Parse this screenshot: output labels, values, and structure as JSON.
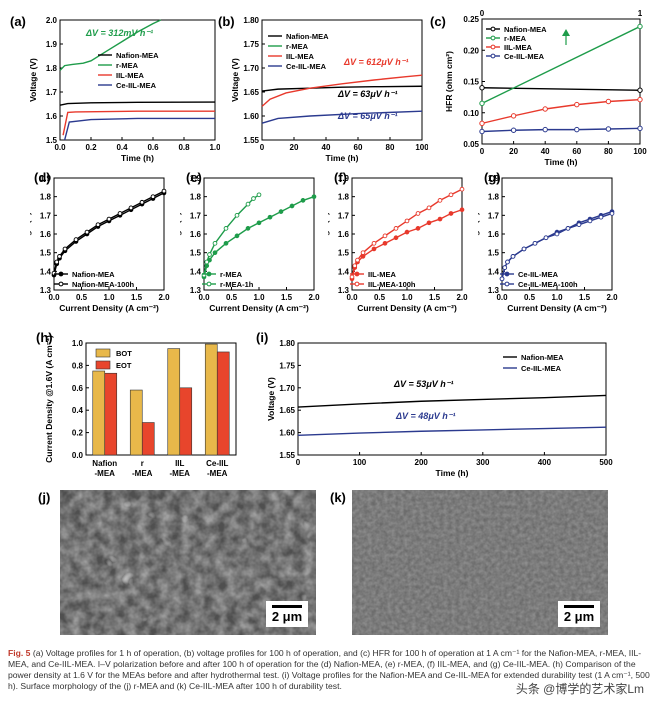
{
  "panels": {
    "a": {
      "label": "(a)",
      "chart_data": {
        "type": "line",
        "xlabel": "Time (h)",
        "ylabel": "Voltage (V)",
        "xlim": [
          0,
          1.0
        ],
        "ylim": [
          1.5,
          2.0
        ],
        "xticks": [
          "0.0",
          "0.2",
          "0.4",
          "0.6",
          "0.8",
          "1.0"
        ],
        "yticks": [
          "1.5",
          "1.6",
          "1.7",
          "1.8",
          "1.9",
          "2.0"
        ],
        "series": [
          {
            "name": "Nafion-MEA",
            "color": "#000000",
            "x": [
              0,
              0.05,
              0.2,
              0.5,
              1.0
            ],
            "y": [
              1.645,
              1.652,
              1.655,
              1.657,
              1.658
            ]
          },
          {
            "name": "r-MEA",
            "color": "#1e9c4a",
            "x": [
              0,
              0.03,
              0.08,
              0.15,
              0.2,
              0.3,
              0.4,
              0.5,
              0.6,
              0.65
            ],
            "y": [
              1.79,
              1.81,
              1.815,
              1.82,
              1.83,
              1.87,
              1.91,
              1.95,
              1.985,
              2.0
            ]
          },
          {
            "name": "IIL-MEA",
            "color": "#e8392c",
            "x": [
              0.02,
              0.05,
              0.1,
              0.5,
              1.0
            ],
            "y": [
              1.52,
              1.615,
              1.617,
              1.62,
              1.62
            ]
          },
          {
            "name": "Ce-IIL-MEA",
            "color": "#2b3a8f",
            "x": [
              0.03,
              0.06,
              0.2,
              0.5,
              1.0
            ],
            "y": [
              1.5,
              1.575,
              1.585,
              1.59,
              1.59
            ]
          }
        ],
        "annotation": "ΔV = 312mV h⁻¹"
      }
    },
    "b": {
      "label": "(b)",
      "chart_data": {
        "type": "line",
        "xlabel": "Time (h)",
        "ylabel": "Voltage (V)",
        "xlim": [
          0,
          100
        ],
        "ylim": [
          1.55,
          1.8
        ],
        "xticks": [
          "0",
          "20",
          "40",
          "60",
          "80",
          "100"
        ],
        "yticks": [
          "1.55",
          "1.60",
          "1.65",
          "1.70",
          "1.75",
          "1.80"
        ],
        "series": [
          {
            "name": "Nafion-MEA",
            "color": "#000000",
            "x": [
              0,
              10,
              30,
              50,
              70,
              100
            ],
            "y": [
              1.652,
              1.656,
              1.658,
              1.66,
              1.661,
              1.662
            ]
          },
          {
            "name": "r-MEA",
            "color": "#1e9c4a",
            "x": [],
            "y": []
          },
          {
            "name": "IIL-MEA",
            "color": "#e8392c",
            "x": [
              0,
              5,
              15,
              30,
              50,
              70,
              90,
              100
            ],
            "y": [
              1.62,
              1.635,
              1.648,
              1.658,
              1.667,
              1.675,
              1.682,
              1.685
            ]
          },
          {
            "name": "Ce-IIL-MEA",
            "color": "#2b3a8f",
            "x": [
              0,
              10,
              30,
              60,
              100
            ],
            "y": [
              1.585,
              1.595,
              1.6,
              1.605,
              1.61
            ]
          }
        ],
        "annotations": [
          "ΔV = 612μV h⁻¹",
          "ΔV = 63μV h⁻¹",
          "ΔV = 65μV h⁻¹"
        ]
      }
    },
    "c": {
      "label": "(c)",
      "chart_data": {
        "type": "line",
        "xlabel": "Time (h)",
        "ylabel": "HFR (ohm cm²)",
        "xlim": [
          0,
          100
        ],
        "ylim": [
          0.05,
          0.25
        ],
        "top_xlim": [
          0,
          1
        ],
        "xticks": [
          "0",
          "20",
          "40",
          "60",
          "80",
          "100"
        ],
        "top_xticks": [
          "0",
          "1"
        ],
        "yticks": [
          "0.05",
          "0.10",
          "0.15",
          "0.20",
          "0.25"
        ],
        "series": [
          {
            "name": "Nafion-MEA",
            "color": "#000000",
            "x": [
              0,
              100
            ],
            "y": [
              0.14,
              0.136
            ]
          },
          {
            "name": "r-MEA",
            "color": "#1e9c4a",
            "x": [
              0,
              100
            ],
            "y": [
              0.115,
              0.238
            ]
          },
          {
            "name": "IIL-MEA",
            "color": "#e8392c",
            "x": [
              0,
              20,
              40,
              60,
              80,
              100
            ],
            "y": [
              0.083,
              0.095,
              0.106,
              0.113,
              0.118,
              0.121
            ]
          },
          {
            "name": "Ce-IIL-MEA",
            "color": "#2b3a8f",
            "x": [
              0,
              20,
              40,
              60,
              80,
              100
            ],
            "y": [
              0.07,
              0.072,
              0.073,
              0.073,
              0.074,
              0.075
            ]
          }
        ]
      }
    },
    "d": {
      "label": "(d)",
      "chart_data": {
        "type": "line",
        "xlabel": "Current Density (A cm⁻²)",
        "ylabel": "Voltage (V)",
        "xlim": [
          0,
          2.0
        ],
        "ylim": [
          1.3,
          1.9
        ],
        "xticks": [
          "0.0",
          "0.5",
          "1.0",
          "1.5",
          "2.0"
        ],
        "yticks": [
          "1.3",
          "1.4",
          "1.5",
          "1.6",
          "1.7",
          "1.8",
          "1.9"
        ],
        "series": [
          {
            "name": "Nafion-MEA",
            "color": "#000000",
            "marker": "filled",
            "x": [
              0,
              0.05,
              0.1,
              0.2,
              0.4,
              0.6,
              0.8,
              1.0,
              1.2,
              1.4,
              1.6,
              1.8,
              2.0
            ],
            "y": [
              1.38,
              1.44,
              1.47,
              1.51,
              1.56,
              1.6,
              1.64,
              1.67,
              1.7,
              1.73,
              1.76,
              1.79,
              1.82
            ]
          },
          {
            "name": "Nafion-MEA-100h",
            "color": "#000000",
            "marker": "open",
            "x": [
              0,
              0.05,
              0.1,
              0.2,
              0.4,
              0.6,
              0.8,
              1.0,
              1.2,
              1.4,
              1.6,
              1.8,
              2.0
            ],
            "y": [
              1.39,
              1.45,
              1.48,
              1.52,
              1.57,
              1.61,
              1.65,
              1.68,
              1.71,
              1.74,
              1.77,
              1.8,
              1.83
            ]
          }
        ]
      }
    },
    "e": {
      "label": "(e)",
      "chart_data": {
        "type": "line",
        "xlabel": "Current Density (A cm⁻²)",
        "ylabel": "Voltage (V)",
        "xlim": [
          0,
          2.0
        ],
        "ylim": [
          1.3,
          1.9
        ],
        "xticks": [
          "0.0",
          "0.5",
          "1.0",
          "1.5",
          "2.0"
        ],
        "yticks": [
          "1.3",
          "1.4",
          "1.5",
          "1.6",
          "1.7",
          "1.8",
          "1.9"
        ],
        "series": [
          {
            "name": "r-MEA",
            "color": "#1e9c4a",
            "marker": "filled",
            "x": [
              0,
              0.05,
              0.1,
              0.2,
              0.4,
              0.6,
              0.8,
              1.0,
              1.2,
              1.4,
              1.6,
              1.8,
              2.0
            ],
            "y": [
              1.37,
              1.43,
              1.46,
              1.5,
              1.55,
              1.59,
              1.63,
              1.66,
              1.69,
              1.72,
              1.75,
              1.78,
              1.8
            ]
          },
          {
            "name": "r-MEA-1h",
            "color": "#1e9c4a",
            "marker": "open",
            "x": [
              0,
              0.05,
              0.1,
              0.2,
              0.4,
              0.6,
              0.8,
              0.9,
              1.0
            ],
            "y": [
              1.38,
              1.45,
              1.49,
              1.55,
              1.63,
              1.7,
              1.76,
              1.79,
              1.81
            ]
          }
        ]
      }
    },
    "f": {
      "label": "(f)",
      "chart_data": {
        "type": "line",
        "xlabel": "Current Density (A cm⁻²)",
        "ylabel": "Voltage (V)",
        "xlim": [
          0,
          2.0
        ],
        "ylim": [
          1.3,
          1.9
        ],
        "xticks": [
          "0.0",
          "0.5",
          "1.0",
          "1.5",
          "2.0"
        ],
        "yticks": [
          "1.3",
          "1.4",
          "1.5",
          "1.6",
          "1.7",
          "1.8",
          "1.9"
        ],
        "series": [
          {
            "name": "IIL-MEA",
            "color": "#e8392c",
            "marker": "filled",
            "x": [
              0,
              0.05,
              0.1,
              0.2,
              0.4,
              0.6,
              0.8,
              1.0,
              1.2,
              1.4,
              1.6,
              1.8,
              2.0
            ],
            "y": [
              1.36,
              1.42,
              1.45,
              1.48,
              1.52,
              1.55,
              1.58,
              1.61,
              1.63,
              1.66,
              1.68,
              1.71,
              1.73
            ]
          },
          {
            "name": "IIL-MEA-100h",
            "color": "#e8392c",
            "marker": "open",
            "x": [
              0,
              0.05,
              0.1,
              0.2,
              0.4,
              0.6,
              0.8,
              1.0,
              1.2,
              1.4,
              1.6,
              1.8,
              2.0
            ],
            "y": [
              1.37,
              1.43,
              1.46,
              1.5,
              1.55,
              1.59,
              1.63,
              1.67,
              1.71,
              1.74,
              1.78,
              1.81,
              1.84
            ]
          }
        ]
      }
    },
    "g": {
      "label": "(g)",
      "chart_data": {
        "type": "line",
        "xlabel": "Current Density (A cm⁻²)",
        "ylabel": "Voltage (V)",
        "xlim": [
          0,
          2.0
        ],
        "ylim": [
          1.3,
          1.9
        ],
        "xticks": [
          "0.0",
          "0.5",
          "1.0",
          "1.5",
          "2.0"
        ],
        "yticks": [
          "1.3",
          "1.4",
          "1.5",
          "1.6",
          "1.7",
          "1.8",
          "1.9"
        ],
        "series": [
          {
            "name": "Ce-IIL-MEA",
            "color": "#2b3a8f",
            "marker": "filled",
            "x": [
              0,
              0.05,
              0.1,
              0.2,
              0.4,
              0.6,
              0.8,
              1.0,
              1.2,
              1.4,
              1.6,
              1.8,
              2.0
            ],
            "y": [
              1.36,
              1.42,
              1.45,
              1.48,
              1.52,
              1.55,
              1.58,
              1.61,
              1.63,
              1.66,
              1.68,
              1.7,
              1.72
            ]
          },
          {
            "name": "Ce-IIL-MEA-100h",
            "color": "#2b3a8f",
            "marker": "open",
            "x": [
              0,
              0.05,
              0.1,
              0.2,
              0.4,
              0.6,
              0.8,
              1.0,
              1.2,
              1.4,
              1.6,
              1.8,
              2.0
            ],
            "y": [
              1.36,
              1.42,
              1.45,
              1.48,
              1.52,
              1.55,
              1.58,
              1.6,
              1.63,
              1.65,
              1.67,
              1.69,
              1.71
            ]
          }
        ]
      }
    },
    "h": {
      "label": "(h)",
      "chart_data": {
        "type": "bar",
        "ylabel": "Current Density @1.6V (A cm⁻²)",
        "ylim": [
          0,
          1.0
        ],
        "yticks": [
          "0.0",
          "0.2",
          "0.4",
          "0.6",
          "0.8",
          "1.0"
        ],
        "categories": [
          "Nafion\n-MEA",
          "r\n-MEA",
          "IIL\n-MEA",
          "Ce-IIL\n-MEA"
        ],
        "series": [
          {
            "name": "BOT",
            "color": "#e8b84a",
            "values": [
              0.75,
              0.58,
              0.95,
              0.99
            ]
          },
          {
            "name": "EOT",
            "color": "#e8452c",
            "values": [
              0.73,
              0.29,
              0.6,
              0.92
            ]
          }
        ]
      }
    },
    "i": {
      "label": "(i)",
      "chart_data": {
        "type": "line",
        "xlabel": "Time (h)",
        "ylabel": "Voltage (V)",
        "xlim": [
          0,
          500
        ],
        "ylim": [
          1.55,
          1.8
        ],
        "xticks": [
          "0",
          "100",
          "200",
          "300",
          "400",
          "500"
        ],
        "yticks": [
          "1.55",
          "1.60",
          "1.65",
          "1.70",
          "1.75",
          "1.80"
        ],
        "series": [
          {
            "name": "Nafion-MEA",
            "color": "#000000",
            "x": [
              0,
              100,
              200,
              300,
              400,
              500
            ],
            "y": [
              1.657,
              1.664,
              1.67,
              1.674,
              1.678,
              1.683
            ]
          },
          {
            "name": "Ce-IIL-MEA",
            "color": "#2b3a8f",
            "x": [
              0,
              100,
              200,
              300,
              400,
              500
            ],
            "y": [
              1.594,
              1.599,
              1.603,
              1.606,
              1.609,
              1.612
            ]
          }
        ],
        "annotations": [
          "ΔV = 53μV h⁻¹",
          "ΔV = 48μV h⁻¹"
        ]
      }
    },
    "j": {
      "label": "(j)",
      "scale": "2 μm"
    },
    "k": {
      "label": "(k)",
      "scale": "2 μm"
    }
  },
  "caption": {
    "fig": "Fig. 5",
    "text": "(a) Voltage profiles for 1 h of operation, (b) voltage profiles for 100 h of operation, and (c) HFR for 100 h of operation at 1 A cm⁻¹ for the Nafion-MEA, r-MEA, IIL-MEA, and Ce-IIL-MEA. I–V polarization before and after 100 h of operation for the (d) Nafion-MEA, (e) r-MEA, (f) IIL-MEA, and (g) Ce-IIL-MEA. (h) Comparison of the power density at 1.6 V for the MEAs before and after hydrothermal test. (i) Voltage profiles for the Nafion-MEA and Ce-IIL-MEA for extended durability test (1 A cm⁻¹, 500 h). Surface morphology of the (j) r-MEA and (k) Ce-IIL-MEA after 100 h of durability test."
  },
  "watermark": "头条 @博学的艺术家Lm"
}
